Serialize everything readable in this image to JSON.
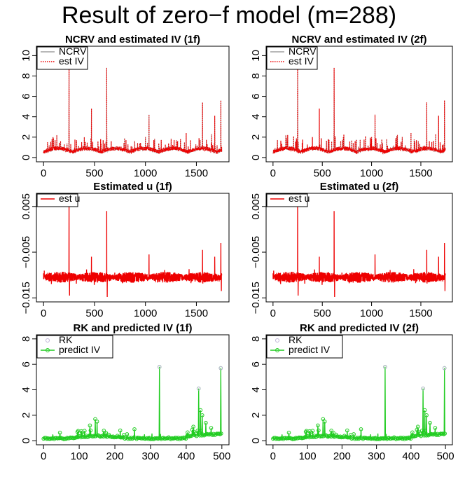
{
  "main_title": "Result of zero−f model (m=288)",
  "colors": {
    "ncrv": "#a0a0a0",
    "est_iv": "#ee0000",
    "est_u": "#ee0000",
    "rk": "#c0b4d8",
    "predict_iv": "#22cc22"
  },
  "chart_data": [
    {
      "id": "ncrv-1f",
      "type": "line",
      "title": "NCRV and estimated IV (1f)",
      "xlabel": "",
      "ylabel": "",
      "xlim": [
        0,
        1750
      ],
      "ylim": [
        0,
        10.5
      ],
      "xticks": [
        "0",
        "500",
        "1000",
        "1500"
      ],
      "yticks": [
        "0",
        "2",
        "4",
        "6",
        "8",
        "10"
      ],
      "legend": {
        "position": "top-left",
        "entries": [
          "NCRV",
          "est IV"
        ]
      },
      "series": [
        {
          "name": "NCRV",
          "style": "solid-gray"
        },
        {
          "name": "est IV",
          "style": "dotted-red"
        }
      ],
      "x_count": 1750,
      "spikes": [
        [
          250,
          10.2
        ],
        [
          470,
          4.8
        ],
        [
          620,
          8.8
        ],
        [
          1035,
          4.2
        ],
        [
          1000,
          2.0
        ],
        [
          1560,
          5.4
        ],
        [
          1680,
          4.1
        ],
        [
          1740,
          5.6
        ],
        [
          130,
          2.2
        ],
        [
          400,
          2.0
        ],
        [
          560,
          1.8
        ],
        [
          1400,
          2.4
        ],
        [
          1650,
          2.3
        ]
      ]
    },
    {
      "id": "ncrv-2f",
      "type": "line",
      "title": "NCRV and estimated IV (2f)",
      "xlabel": "",
      "ylabel": "",
      "xlim": [
        0,
        1750
      ],
      "ylim": [
        0,
        10.5
      ],
      "xticks": [
        "0",
        "500",
        "1000",
        "1500"
      ],
      "yticks": [
        "0",
        "2",
        "4",
        "6",
        "8",
        "10"
      ],
      "legend": {
        "position": "top-left",
        "entries": [
          "NCRV",
          "est IV"
        ]
      },
      "series": [
        {
          "name": "NCRV",
          "style": "solid-gray"
        },
        {
          "name": "est IV",
          "style": "dotted-red"
        }
      ],
      "x_count": 1750,
      "spikes": [
        [
          250,
          10.2
        ],
        [
          470,
          4.8
        ],
        [
          620,
          8.8
        ],
        [
          1035,
          4.2
        ],
        [
          1000,
          2.0
        ],
        [
          1560,
          5.4
        ],
        [
          1680,
          4.1
        ],
        [
          1740,
          5.6
        ],
        [
          130,
          2.2
        ],
        [
          400,
          2.0
        ],
        [
          560,
          1.8
        ],
        [
          1400,
          2.4
        ],
        [
          1650,
          2.3
        ]
      ]
    },
    {
      "id": "u-1f",
      "type": "line",
      "title": "Estimated u (1f)",
      "xlabel": "",
      "ylabel": "",
      "xlim": [
        0,
        1750
      ],
      "ylim": [
        -0.015,
        0.007
      ],
      "xticks": [
        "0",
        "500",
        "1000",
        "1500"
      ],
      "yticks": [
        "−0.015",
        "−0.005",
        "0.005"
      ],
      "ytick_values": [
        -0.015,
        -0.005,
        0.005
      ],
      "legend": {
        "position": "top-left",
        "entries": [
          "est u"
        ]
      },
      "series": [
        {
          "name": "est u",
          "style": "solid-red"
        }
      ],
      "baseline": -0.0105,
      "noise": 0.0012,
      "spikes": [
        [
          250,
          0.0065
        ],
        [
          255,
          -0.0145
        ],
        [
          470,
          -0.006
        ],
        [
          620,
          0.004
        ],
        [
          625,
          -0.0148
        ],
        [
          1035,
          -0.0055
        ],
        [
          1560,
          -0.0045
        ],
        [
          1680,
          -0.006
        ],
        [
          1740,
          -0.003
        ],
        [
          1745,
          -0.0135
        ]
      ]
    },
    {
      "id": "u-2f",
      "type": "line",
      "title": "Estimated u (2f)",
      "xlabel": "",
      "ylabel": "",
      "xlim": [
        0,
        1750
      ],
      "ylim": [
        -0.015,
        0.007
      ],
      "xticks": [
        "0",
        "500",
        "1000",
        "1500"
      ],
      "yticks": [
        "−0.015",
        "−0.005",
        "0.005"
      ],
      "ytick_values": [
        -0.015,
        -0.005,
        0.005
      ],
      "legend": {
        "position": "top-left",
        "entries": [
          "est u"
        ]
      },
      "series": [
        {
          "name": "est u",
          "style": "solid-red"
        }
      ],
      "baseline": -0.0105,
      "noise": 0.0012,
      "spikes": [
        [
          250,
          0.0065
        ],
        [
          255,
          -0.0145
        ],
        [
          470,
          -0.006
        ],
        [
          620,
          0.004
        ],
        [
          625,
          -0.0148
        ],
        [
          1035,
          -0.0055
        ],
        [
          1560,
          -0.0045
        ],
        [
          1680,
          -0.006
        ],
        [
          1740,
          -0.003
        ],
        [
          1745,
          -0.0135
        ]
      ]
    },
    {
      "id": "rk-1f",
      "type": "line",
      "title": "RK and predicted IV (1f)",
      "xlabel": "",
      "ylabel": "",
      "xlim": [
        0,
        500
      ],
      "ylim": [
        0,
        8
      ],
      "xticks": [
        "0",
        "100",
        "200",
        "300",
        "400",
        "500"
      ],
      "yticks": [
        "0",
        "2",
        "4",
        "6",
        "8"
      ],
      "legend": {
        "position": "top-left",
        "entries": [
          "RK",
          "predict IV"
        ]
      },
      "series": [
        {
          "name": "RK",
          "style": "lavender-points"
        },
        {
          "name": "predict IV",
          "style": "green-line-circles"
        }
      ],
      "x_count": 500,
      "spikes": [
        [
          325,
          5.8
        ],
        [
          435,
          4.1
        ],
        [
          497,
          5.7
        ],
        [
          145,
          1.7
        ],
        [
          150,
          1.5
        ],
        [
          130,
          1.2
        ],
        [
          440,
          2.4
        ],
        [
          445,
          2.0
        ],
        [
          455,
          1.4
        ],
        [
          420,
          1.1
        ],
        [
          470,
          1.0
        ],
        [
          255,
          0.9
        ],
        [
          215,
          0.8
        ]
      ]
    },
    {
      "id": "rk-2f",
      "type": "line",
      "title": "RK and predicted IV (2f)",
      "xlabel": "",
      "ylabel": "",
      "xlim": [
        0,
        500
      ],
      "ylim": [
        0,
        8
      ],
      "xticks": [
        "0",
        "100",
        "200",
        "300",
        "400",
        "500"
      ],
      "yticks": [
        "0",
        "2",
        "4",
        "6",
        "8"
      ],
      "legend": {
        "position": "top-left",
        "entries": [
          "RK",
          "predict IV"
        ]
      },
      "series": [
        {
          "name": "RK",
          "style": "lavender-points"
        },
        {
          "name": "predict IV",
          "style": "green-line-circles"
        }
      ],
      "x_count": 500,
      "spikes": [
        [
          325,
          5.8
        ],
        [
          435,
          4.1
        ],
        [
          497,
          5.7
        ],
        [
          145,
          1.7
        ],
        [
          150,
          1.5
        ],
        [
          130,
          1.2
        ],
        [
          440,
          2.4
        ],
        [
          445,
          2.0
        ],
        [
          455,
          1.4
        ],
        [
          420,
          1.1
        ],
        [
          470,
          1.0
        ],
        [
          255,
          0.9
        ],
        [
          215,
          0.8
        ]
      ]
    }
  ]
}
